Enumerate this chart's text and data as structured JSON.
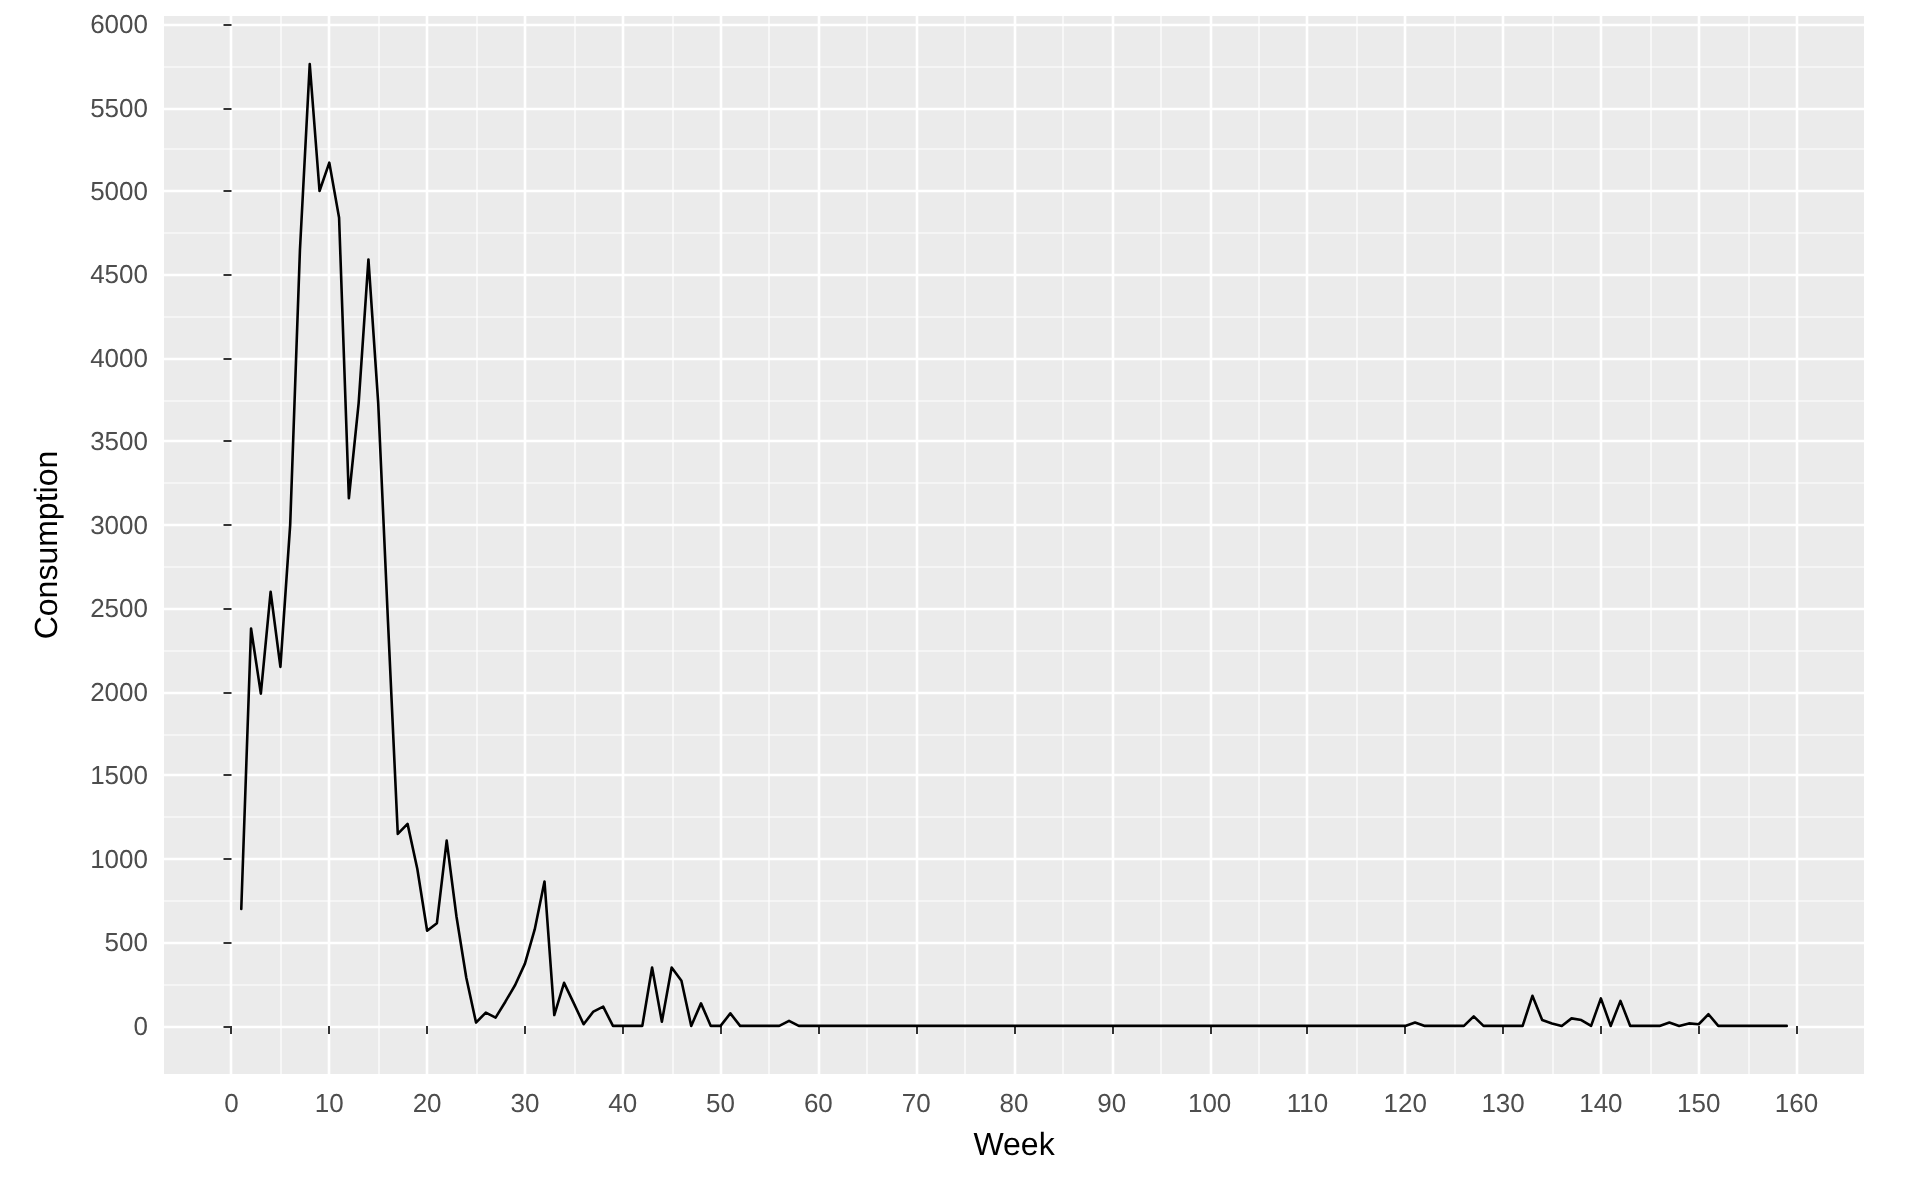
{
  "chart_data": {
    "type": "line",
    "xlabel": "Week",
    "ylabel": "Consumption",
    "x": [
      1,
      2,
      3,
      4,
      5,
      6,
      7,
      8,
      9,
      10,
      11,
      12,
      13,
      14,
      15,
      16,
      17,
      18,
      19,
      20,
      21,
      22,
      23,
      24,
      25,
      26,
      27,
      28,
      29,
      30,
      31,
      32,
      33,
      34,
      35,
      36,
      37,
      38,
      39,
      40,
      41,
      42,
      43,
      44,
      45,
      46,
      47,
      48,
      49,
      50,
      51,
      52,
      56,
      57,
      58,
      120,
      121,
      122,
      126,
      127,
      128,
      132,
      133,
      134,
      135,
      136,
      137,
      138,
      139,
      140,
      141,
      142,
      143,
      146,
      147,
      148,
      149,
      150,
      151,
      152,
      159
    ],
    "series": [
      {
        "color": "#000000",
        "values": [
          700,
          2380,
          1990,
          2600,
          2150,
          3000,
          4650,
          5760,
          5000,
          5170,
          4840,
          3160,
          3730,
          4590,
          3730,
          2420,
          1150,
          1210,
          940,
          570,
          615,
          1110,
          655,
          290,
          20,
          80,
          50,
          145,
          245,
          373,
          578,
          865,
          65,
          258,
          135,
          10,
          86,
          115,
          0,
          0,
          0,
          0,
          350,
          25,
          350,
          270,
          0,
          135,
          0,
          0,
          75,
          0,
          0,
          30,
          0,
          0,
          20,
          0,
          0,
          57,
          0,
          0,
          180,
          35,
          15,
          0,
          45,
          35,
          0,
          165,
          0,
          150,
          0,
          0,
          20,
          0,
          15,
          10,
          70,
          0,
          0
        ]
      }
    ],
    "xlim": [
      -6.9,
      166.9
    ],
    "xticks": [
      0,
      10,
      20,
      30,
      40,
      50,
      60,
      70,
      80,
      90,
      100,
      110,
      120,
      130,
      140,
      150,
      160
    ],
    "ylim": [
      -288,
      6048
    ],
    "yticks": [
      0,
      500,
      1000,
      1500,
      2000,
      2500,
      3000,
      3500,
      4000,
      4500,
      5000,
      5500,
      6000
    ],
    "grid": true,
    "marker": "none",
    "line_style": "solid"
  }
}
